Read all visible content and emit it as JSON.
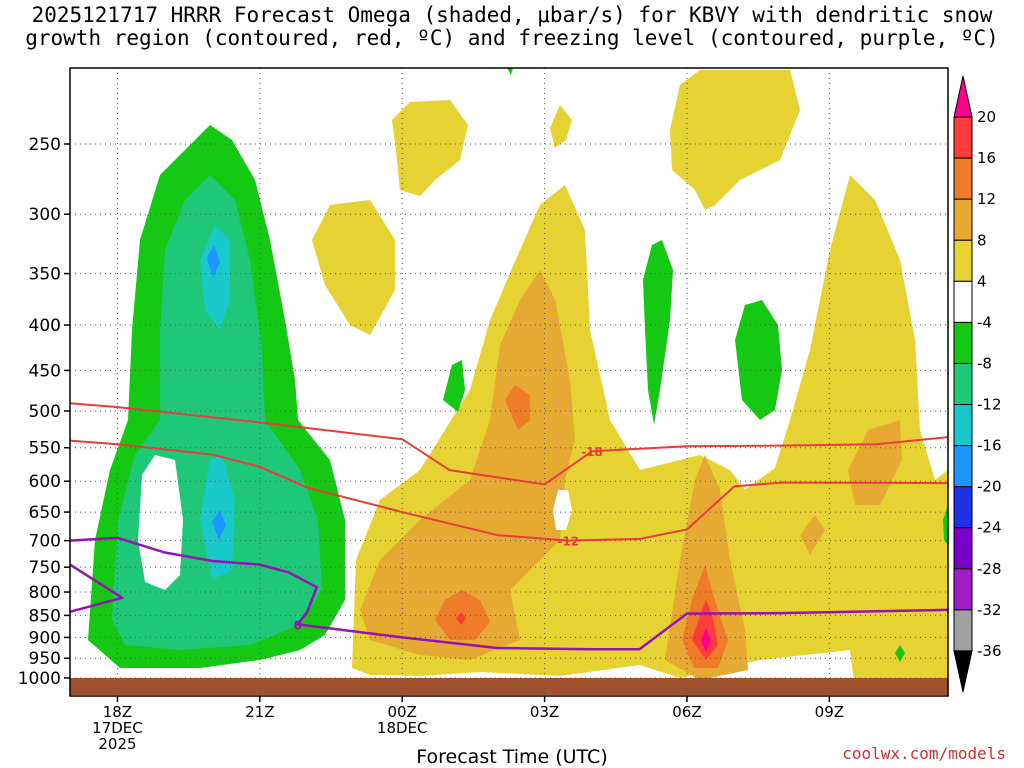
{
  "title": {
    "line1": "2025121717 HRRR Forecast Omega (shaded, μbar/s) for KBVY with dendritic snow",
    "line2": "growth region (contoured, red, ºC) and freezing level (contoured, purple, ºC)"
  },
  "credit": "coolwx.com/models",
  "chart_data": {
    "type": "heatmap",
    "xlabel": "Forecast Time (UTC)",
    "x_ticks": [
      {
        "label": "18Z",
        "sub": [
          "17DEC",
          "2025"
        ],
        "hour": 0
      },
      {
        "label": "21Z",
        "sub": [],
        "hour": 3
      },
      {
        "label": "00Z",
        "sub": [
          "18DEC"
        ],
        "hour": 6
      },
      {
        "label": "03Z",
        "sub": [],
        "hour": 9
      },
      {
        "label": "06Z",
        "sub": [],
        "hour": 12
      },
      {
        "label": "09Z",
        "sub": [],
        "hour": 15
      }
    ],
    "x_range_hours": [
      -1,
      17.5
    ],
    "y_axis": {
      "type": "pressure",
      "range_hpa": [
        1000,
        200
      ]
    },
    "y_ticks": [
      "250",
      "300",
      "350",
      "400",
      "450",
      "500",
      "550",
      "600",
      "650",
      "700",
      "750",
      "800",
      "850",
      "900",
      "950",
      "1000"
    ],
    "grid": true,
    "colorbar": {
      "labels": [
        "20",
        "16",
        "12",
        "8",
        "4",
        "-4",
        "-8",
        "-12",
        "-16",
        "-20",
        "-24",
        "-28",
        "-32",
        "-36"
      ],
      "colors": [
        "#ff008c",
        "#ff3c3c",
        "#f07b28",
        "#e6aa32",
        "#e6d232",
        "#ffffff",
        "#14c814",
        "#1ec878",
        "#19c8c8",
        "#1e96ff",
        "#1e32e6",
        "#7800c8",
        "#a01ec8",
        "#a0a0a0",
        "#000000"
      ]
    },
    "contours": [
      {
        "series": "dendritic",
        "color": "#e83c3c",
        "label": "-18",
        "points": [
          [
            -1,
            490
          ],
          [
            0,
            495
          ],
          [
            3,
            515
          ],
          [
            6,
            538
          ],
          [
            7,
            583
          ],
          [
            9,
            605
          ],
          [
            10,
            555
          ],
          [
            12,
            548
          ],
          [
            14,
            547
          ],
          [
            16,
            545
          ],
          [
            17.5,
            535
          ]
        ]
      },
      {
        "series": "dendritic",
        "color": "#e83c3c",
        "label": "-12",
        "points": [
          [
            -1,
            540
          ],
          [
            0,
            545
          ],
          [
            2,
            560
          ],
          [
            3,
            578
          ],
          [
            4,
            610
          ],
          [
            6,
            650
          ],
          [
            8,
            690
          ],
          [
            9.5,
            700
          ],
          [
            11,
            697
          ],
          [
            12,
            680
          ],
          [
            13,
            608
          ],
          [
            14,
            602
          ],
          [
            17.5,
            603
          ]
        ]
      },
      {
        "series": "freezing",
        "color": "#9612b4",
        "label": "0",
        "points": [
          [
            -1,
            700
          ],
          [
            0,
            695
          ],
          [
            1,
            722
          ],
          [
            2,
            738
          ],
          [
            3,
            745
          ],
          [
            3.6,
            760
          ],
          [
            4.2,
            790
          ],
          [
            4,
            842
          ],
          [
            3.8,
            870
          ],
          [
            6,
            900
          ],
          [
            8,
            925
          ],
          [
            10,
            928
          ],
          [
            11,
            928
          ],
          [
            12,
            846
          ],
          [
            14,
            845
          ],
          [
            17.5,
            838
          ]
        ]
      },
      {
        "series": "freezing",
        "color": "#9612b4",
        "label": "",
        "points": [
          [
            -1,
            745
          ],
          [
            0.1,
            812
          ],
          [
            -1,
            842
          ]
        ]
      }
    ],
    "omega_regions": [
      {
        "value": -4,
        "note": "upward motion centre near 20Z at 300-800 hPa"
      },
      {
        "value": -12,
        "note": "core near 20Z 350 hPa and 20Z 675 hPa"
      },
      {
        "value": 16,
        "note": "maximum near 06Z 900 hPa"
      }
    ]
  }
}
